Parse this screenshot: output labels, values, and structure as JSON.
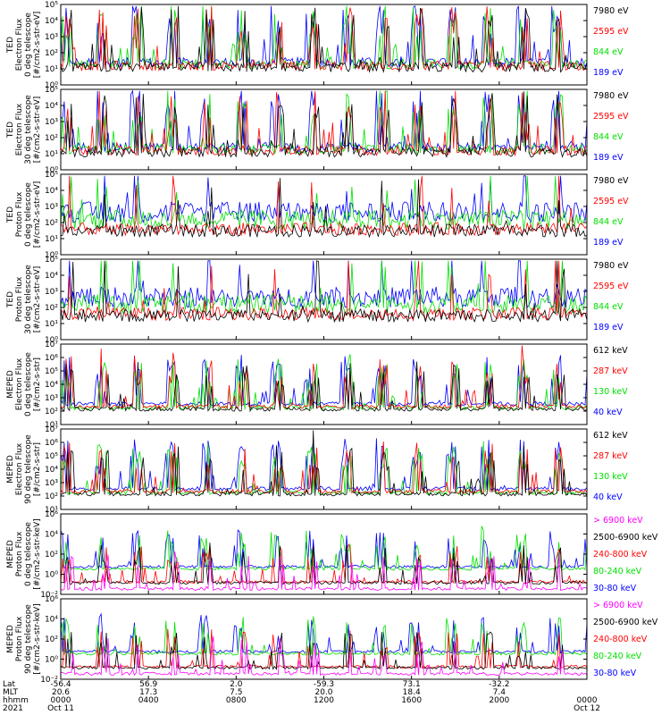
{
  "colors": {
    "black": "#000000",
    "red": "#ff0000",
    "green": "#00e000",
    "blue": "#0000ff",
    "magenta": "#ff00ff"
  },
  "chart_data": [
    {
      "type": "line",
      "instrument": "TED",
      "ylabel": [
        "TED",
        "Electron Flux",
        "0 deg telescope",
        "[#/cm2-s-str-eV]"
      ],
      "ylim_log10": [
        0,
        5
      ],
      "ytick_labels": [
        "10⁰",
        "10¹",
        "10²",
        "10³",
        "10⁴",
        "10⁵"
      ],
      "legend": [
        {
          "label": "7980 eV",
          "color": "#000000"
        },
        {
          "label": "2595 eV",
          "color": "#ff0000"
        },
        {
          "label": "844 eV",
          "color": "#00e000"
        },
        {
          "label": "189 eV",
          "color": "#0000ff"
        }
      ]
    },
    {
      "type": "line",
      "instrument": "TED",
      "ylabel": [
        "TED",
        "Electron Flux",
        "30 deg telescope",
        "[#/cm2-s-str-eV]"
      ],
      "ylim_log10": [
        0,
        5
      ],
      "ytick_labels": [
        "10⁰",
        "10¹",
        "10²",
        "10³",
        "10⁴",
        "10⁵"
      ],
      "legend": [
        {
          "label": "7980 eV",
          "color": "#000000"
        },
        {
          "label": "2595 eV",
          "color": "#ff0000"
        },
        {
          "label": "844 eV",
          "color": "#00e000"
        },
        {
          "label": "189 eV",
          "color": "#0000ff"
        }
      ]
    },
    {
      "type": "line",
      "instrument": "TED",
      "ylabel": [
        "TED",
        "Proton Flux",
        "0 deg telescope",
        "[#/cm2-s-str-eV]"
      ],
      "ylim_log10": [
        0,
        5
      ],
      "ytick_labels": [
        "10⁰",
        "10¹",
        "10²",
        "10³",
        "10⁴",
        "10⁵"
      ],
      "legend": [
        {
          "label": "7980 eV",
          "color": "#000000"
        },
        {
          "label": "2595 eV",
          "color": "#ff0000"
        },
        {
          "label": "844 eV",
          "color": "#00e000"
        },
        {
          "label": "189 eV",
          "color": "#0000ff"
        }
      ]
    },
    {
      "type": "line",
      "instrument": "TED",
      "ylabel": [
        "TED",
        "Proton Flux",
        "30 deg telescope",
        "[#/cm2-s-str-eV]"
      ],
      "ylim_log10": [
        0,
        5
      ],
      "ytick_labels": [
        "10⁰",
        "10¹",
        "10²",
        "10³",
        "10⁴",
        "10⁵"
      ],
      "legend": [
        {
          "label": "7980 eV",
          "color": "#000000"
        },
        {
          "label": "2595 eV",
          "color": "#ff0000"
        },
        {
          "label": "844 eV",
          "color": "#00e000"
        },
        {
          "label": "189 eV",
          "color": "#0000ff"
        }
      ]
    },
    {
      "type": "line",
      "instrument": "MEPED",
      "ylabel": [
        "MEPED",
        "Electron Flux",
        "0 deg telescope",
        "[#/cm2-s-str]"
      ],
      "ylim_log10": [
        1,
        7
      ],
      "ytick_labels": [
        "10¹",
        "10²",
        "10³",
        "10⁴",
        "10⁵",
        "10⁶",
        "10⁷"
      ],
      "legend": [
        {
          "label": "612 keV",
          "color": "#000000"
        },
        {
          "label": "287 keV",
          "color": "#ff0000"
        },
        {
          "label": "130 keV",
          "color": "#00e000"
        },
        {
          "label": "40 keV",
          "color": "#0000ff"
        }
      ]
    },
    {
      "type": "line",
      "instrument": "MEPED",
      "ylabel": [
        "MEPED",
        "Electron Flux",
        "90 deg telescope",
        "[#/cm2-s-str]"
      ],
      "ylim_log10": [
        1,
        7
      ],
      "ytick_labels": [
        "10¹",
        "10²",
        "10³",
        "10⁴",
        "10⁵",
        "10⁶",
        "10⁷"
      ],
      "legend": [
        {
          "label": "612 keV",
          "color": "#000000"
        },
        {
          "label": "287 keV",
          "color": "#ff0000"
        },
        {
          "label": "130 keV",
          "color": "#00e000"
        },
        {
          "label": "40 keV",
          "color": "#0000ff"
        }
      ]
    },
    {
      "type": "line",
      "instrument": "MEPED",
      "ylabel": [
        "MEPED",
        "Proton Flux",
        "0 deg telescope",
        "[#/cm2-s-str-keV]"
      ],
      "ylim_log10": [
        -2,
        6
      ],
      "ytick_labels": [
        "10⁻²",
        "10⁰",
        "10²",
        "10⁴",
        "10⁶"
      ],
      "legend": [
        {
          "label": "> 6900 keV",
          "color": "#ff00ff"
        },
        {
          "label": "2500-6900 keV",
          "color": "#000000"
        },
        {
          "label": "240-800 keV",
          "color": "#ff0000"
        },
        {
          "label": "80-240 keV",
          "color": "#00e000"
        },
        {
          "label": "30-80 keV",
          "color": "#0000ff"
        }
      ]
    },
    {
      "type": "line",
      "instrument": "MEPED",
      "ylabel": [
        "MEPED",
        "Proton Flux",
        "90 deg telescope",
        "[#/cm2-s-str-keV]"
      ],
      "ylim_log10": [
        -2,
        6
      ],
      "ytick_labels": [
        "10⁻²",
        "10⁰",
        "10²",
        "10⁴",
        "10⁶"
      ],
      "legend": [
        {
          "label": "> 6900 keV",
          "color": "#ff00ff"
        },
        {
          "label": "2500-6900 keV",
          "color": "#000000"
        },
        {
          "label": "240-800 keV",
          "color": "#ff0000"
        },
        {
          "label": "80-240 keV",
          "color": "#00e000"
        },
        {
          "label": "30-80 keV",
          "color": "#0000ff"
        }
      ]
    }
  ],
  "time_axis": {
    "row_labels": [
      "Lat",
      "MLT",
      "hhmm",
      "2021"
    ],
    "ticks": [
      {
        "lat": "-56.4",
        "mlt": "20.6",
        "hhmm": "0000",
        "date": "Oct 11"
      },
      {
        "lat": "56.9",
        "mlt": "17.3",
        "hhmm": "0400",
        "date": ""
      },
      {
        "lat": "2.0",
        "mlt": "7.5",
        "hhmm": "0800",
        "date": ""
      },
      {
        "lat": "-59.3",
        "mlt": "20.0",
        "hhmm": "1200",
        "date": ""
      },
      {
        "lat": "73.1",
        "mlt": "18.4",
        "hhmm": "1600",
        "date": ""
      },
      {
        "lat": "-32.2",
        "mlt": "7.4",
        "hhmm": "2000",
        "date": ""
      },
      {
        "lat": "",
        "mlt": "",
        "hhmm": "0000",
        "date": "Oct 12"
      }
    ]
  }
}
